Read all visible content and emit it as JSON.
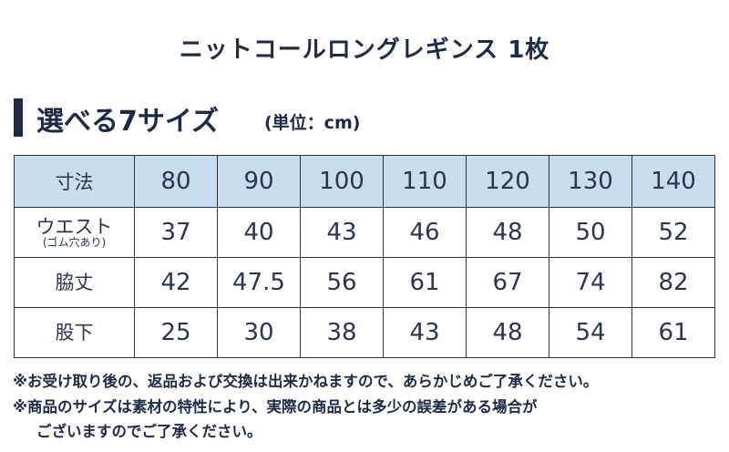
{
  "header": {
    "title": "ニットコールロングレギンス 1枚"
  },
  "section": {
    "heading": "選べる7サイズ",
    "unit": "(単位：cm)"
  },
  "table": {
    "header": [
      "寸法",
      80,
      90,
      100,
      110,
      120,
      130,
      140
    ],
    "rows": [
      {
        "label": "ウエスト",
        "sublabel": "(ゴム穴あり)",
        "values": [
          37,
          40,
          43,
          46,
          48,
          50,
          52
        ]
      },
      {
        "label": "脇丈",
        "values": [
          42,
          47.5,
          56,
          61,
          67,
          74,
          82
        ]
      },
      {
        "label": "股下",
        "values": [
          25,
          30,
          38,
          43,
          48,
          54,
          61
        ]
      }
    ]
  },
  "notes": [
    "※お受け取り後の、返品および交換は出来かねますので、あらかじめご了承ください。",
    "※商品のサイズは素材の特性により、実際の商品とは多少の誤差がある場合が",
    "ございますのでご了承ください。"
  ]
}
